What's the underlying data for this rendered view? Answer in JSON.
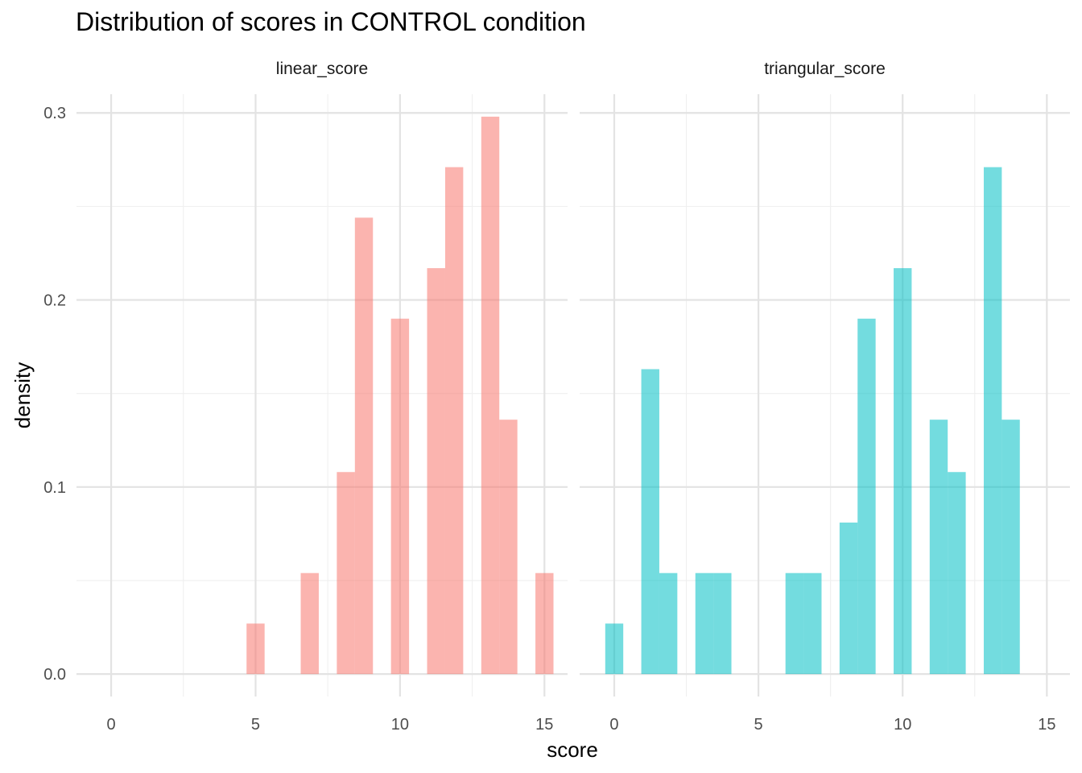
{
  "chart_data": {
    "type": "bar",
    "title": "Distribution of scores in CONTROL condition",
    "xlabel": "score",
    "ylabel": "density",
    "xlim": [
      -1.2,
      15.8
    ],
    "ylim": [
      -0.012,
      0.31
    ],
    "x_ticks": [
      0,
      5,
      10,
      15
    ],
    "y_ticks": [
      0.0,
      0.1,
      0.2,
      0.3
    ],
    "y_tick_labels": [
      "0.0",
      "0.1",
      "0.2",
      "0.3"
    ],
    "grid": true,
    "bin_width": 0.625,
    "panels": [
      {
        "name": "linear_score",
        "color": "#F8766D",
        "bins": [
          {
            "x": 5.0,
            "density": 0.027
          },
          {
            "x": 6.875,
            "density": 0.054
          },
          {
            "x": 8.125,
            "density": 0.108
          },
          {
            "x": 8.75,
            "density": 0.244
          },
          {
            "x": 10.0,
            "density": 0.19
          },
          {
            "x": 11.25,
            "density": 0.217
          },
          {
            "x": 11.875,
            "density": 0.271
          },
          {
            "x": 13.125,
            "density": 0.298
          },
          {
            "x": 13.75,
            "density": 0.136
          },
          {
            "x": 15.0,
            "density": 0.054
          }
        ]
      },
      {
        "name": "triangular_score",
        "color": "#00BFC4",
        "bins": [
          {
            "x": 0.0,
            "density": 0.027
          },
          {
            "x": 1.25,
            "density": 0.163
          },
          {
            "x": 1.875,
            "density": 0.054
          },
          {
            "x": 3.125,
            "density": 0.054
          },
          {
            "x": 3.75,
            "density": 0.054
          },
          {
            "x": 6.25,
            "density": 0.054
          },
          {
            "x": 6.875,
            "density": 0.054
          },
          {
            "x": 8.125,
            "density": 0.081
          },
          {
            "x": 8.75,
            "density": 0.19
          },
          {
            "x": 10.0,
            "density": 0.217
          },
          {
            "x": 11.25,
            "density": 0.136
          },
          {
            "x": 11.875,
            "density": 0.108
          },
          {
            "x": 13.125,
            "density": 0.271
          },
          {
            "x": 13.75,
            "density": 0.136
          }
        ]
      }
    ]
  }
}
